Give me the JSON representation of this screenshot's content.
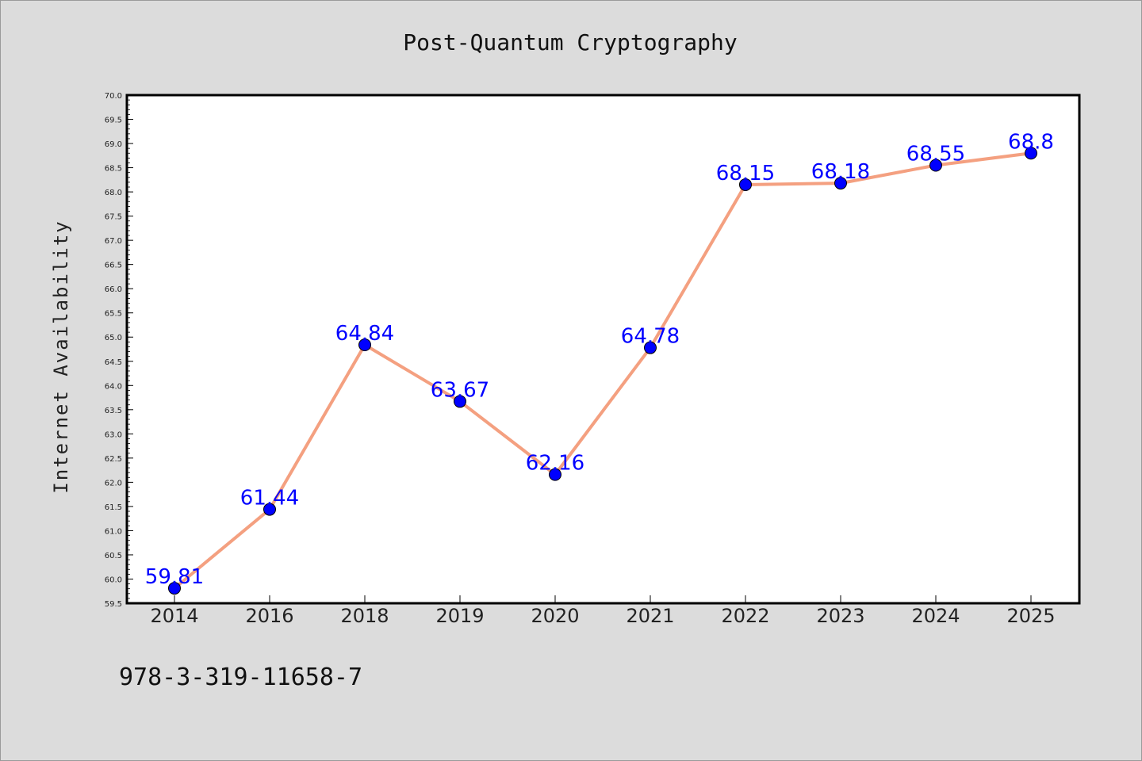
{
  "chart_data": {
    "type": "line",
    "title": "Post-Quantum Cryptography",
    "xlabel": "",
    "ylabel": "Internet Availability",
    "categories": [
      "2014",
      "2016",
      "2018",
      "2019",
      "2020",
      "2021",
      "2022",
      "2023",
      "2024",
      "2025"
    ],
    "series": [
      {
        "values": [
          59.81,
          61.44,
          64.84,
          63.67,
          62.16,
          64.78,
          68.15,
          68.18,
          68.55,
          68.8
        ],
        "data_labels": [
          "59.81",
          "61.44",
          "64.84",
          "63.67",
          "62.16",
          "64.78",
          "68.15",
          "68.18",
          "68.55",
          "68.8"
        ],
        "line_color": "#f4a080",
        "marker_color": "#0000ff"
      }
    ],
    "ylim": [
      59.5,
      70.0
    ],
    "yticks": [
      "59.5",
      "60.0",
      "60.5",
      "61.0",
      "61.5",
      "62.0",
      "62.5",
      "63.0",
      "63.5",
      "64.0",
      "64.5",
      "65.0",
      "65.5",
      "66.0",
      "66.5",
      "67.0",
      "67.5",
      "68.0",
      "68.5",
      "69.0",
      "69.5",
      "70.0"
    ],
    "grid": false,
    "legend": "none"
  },
  "footnote": "978-3-319-11658-7",
  "colors": {
    "background": "#dcdcdc",
    "plot_background": "#ffffff",
    "line": "#f4a080",
    "marker": "#0000ff",
    "label": "#0000ff"
  }
}
